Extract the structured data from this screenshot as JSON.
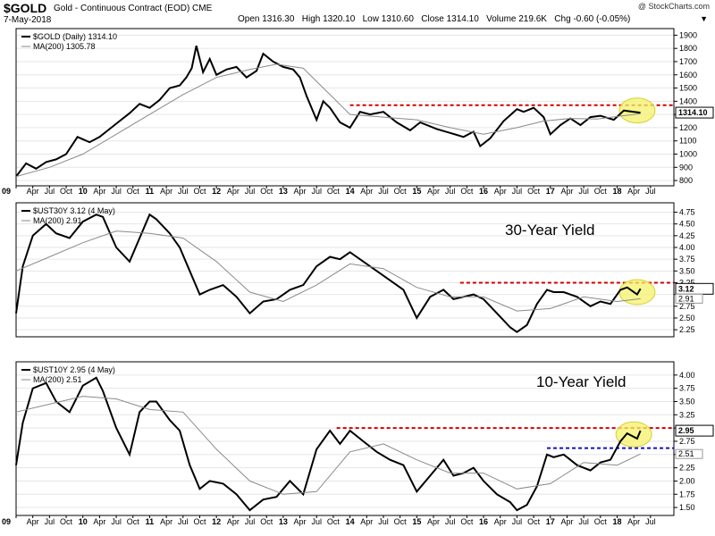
{
  "header": {
    "symbol": "$GOLD",
    "description": "Gold - Continuous Contract (EOD) CME",
    "date": "7-May-2018",
    "brand": "@ StockCharts.com",
    "open_label": "Open",
    "open": "1316.30",
    "high_label": "High",
    "high": "1320.10",
    "low_label": "Low",
    "low": "1310.60",
    "close_label": "Close",
    "close": "1314.10",
    "volume_label": "Volume",
    "volume": "219.6K",
    "chg_label": "Chg",
    "chg": "-0.60 (-0.05%)",
    "dropdown_icon": "triangle-down-icon"
  },
  "colors": {
    "price": "#000000",
    "ma": "#8a8a8a",
    "red_line": "#d40000",
    "blue_line": "#1010cc",
    "highlight": "#f4f26a"
  },
  "chart_data": [
    {
      "type": "line",
      "label": "$GOLD (Daily) 1314.10",
      "ma_label": "MA(200) 1305.78",
      "last_value_label": "1314.10",
      "x_tick_labels": [
        "09",
        "Apr",
        "Jul",
        "Oct",
        "10",
        "Apr",
        "Jul",
        "Oct",
        "11",
        "Apr",
        "Jul",
        "Oct",
        "12",
        "Apr",
        "Jul",
        "Oct",
        "13",
        "Apr",
        "Jul",
        "Oct",
        "14",
        "Apr",
        "Jul",
        "Oct",
        "15",
        "Apr",
        "Jul",
        "Oct",
        "16",
        "Apr",
        "Jul",
        "Oct",
        "17",
        "Apr",
        "Jul",
        "Oct",
        "18",
        "Apr",
        "Jul"
      ],
      "y_ticks": [
        800,
        900,
        1000,
        1100,
        1200,
        1300,
        1400,
        1500,
        1600,
        1700,
        1800,
        1900
      ],
      "ylim": [
        760,
        1950
      ],
      "xlim": [
        2009.0,
        2018.85
      ],
      "series": [
        {
          "x": [
            2009.0,
            2009.15,
            2009.3,
            2009.45,
            2009.6,
            2009.75,
            2009.92,
            2010.1,
            2010.25,
            2010.4,
            2010.55,
            2010.7,
            2010.85,
            2011.0,
            2011.15,
            2011.3,
            2011.45,
            2011.55,
            2011.63,
            2011.7,
            2011.8,
            2011.9,
            2012.0,
            2012.15,
            2012.3,
            2012.45,
            2012.6,
            2012.7,
            2012.85,
            2013.0,
            2013.15,
            2013.25,
            2013.35,
            2013.5,
            2013.6,
            2013.7,
            2013.85,
            2014.0,
            2014.15,
            2014.3,
            2014.5,
            2014.7,
            2014.9,
            2015.05,
            2015.3,
            2015.5,
            2015.7,
            2015.85,
            2015.95,
            2016.1,
            2016.3,
            2016.5,
            2016.6,
            2016.75,
            2016.9,
            2017.0,
            2017.15,
            2017.3,
            2017.45,
            2017.6,
            2017.75,
            2017.95,
            2018.1,
            2018.25,
            2018.35
          ],
          "values": [
            830,
            930,
            890,
            940,
            960,
            1000,
            1130,
            1090,
            1130,
            1190,
            1250,
            1310,
            1380,
            1350,
            1410,
            1500,
            1520,
            1580,
            1650,
            1820,
            1620,
            1720,
            1600,
            1640,
            1660,
            1580,
            1630,
            1760,
            1700,
            1660,
            1640,
            1580,
            1440,
            1260,
            1400,
            1350,
            1240,
            1200,
            1320,
            1300,
            1320,
            1240,
            1180,
            1240,
            1190,
            1160,
            1130,
            1170,
            1060,
            1120,
            1250,
            1340,
            1320,
            1350,
            1280,
            1150,
            1220,
            1270,
            1220,
            1280,
            1290,
            1260,
            1330,
            1320,
            1314
          ]
        },
        {
          "name": "MA(200)",
          "x": [
            2009.0,
            2009.5,
            2010.0,
            2010.5,
            2011.0,
            2011.5,
            2012.0,
            2012.5,
            2012.9,
            2013.3,
            2013.7,
            2014.0,
            2014.5,
            2015.0,
            2015.5,
            2016.0,
            2016.5,
            2016.9,
            2017.3,
            2017.7,
            2018.0,
            2018.35
          ],
          "values": [
            830,
            900,
            1000,
            1150,
            1300,
            1450,
            1580,
            1640,
            1680,
            1650,
            1450,
            1300,
            1280,
            1260,
            1200,
            1150,
            1200,
            1250,
            1270,
            1265,
            1285,
            1305.78
          ]
        }
      ],
      "annotations": [
        {
          "type": "hline",
          "value": 1370,
          "color": "red",
          "from_x": 2014.0,
          "to_x": 2018.85
        },
        {
          "type": "ellipse",
          "center_x": 2018.3,
          "center_value": 1330,
          "color": "yellow"
        }
      ]
    },
    {
      "type": "line",
      "label": "$UST30Y 3.12 (4 May)",
      "ma_label": "MA(200) 2.91",
      "title": "30-Year Yield",
      "last_value_label": "3.12",
      "ma_value_label": "2.91",
      "y_ticks": [
        2.25,
        2.5,
        2.75,
        3.0,
        3.25,
        3.5,
        3.75,
        4.0,
        4.25,
        4.5,
        4.75
      ],
      "ylim": [
        2.1,
        4.95
      ],
      "xlim": [
        2009.0,
        2018.85
      ],
      "series": [
        {
          "x": [
            2009.0,
            2009.1,
            2009.25,
            2009.45,
            2009.6,
            2009.8,
            2010.0,
            2010.2,
            2010.3,
            2010.5,
            2010.7,
            2010.85,
            2011.0,
            2011.1,
            2011.3,
            2011.45,
            2011.6,
            2011.75,
            2011.9,
            2012.1,
            2012.3,
            2012.5,
            2012.7,
            2012.9,
            2013.1,
            2013.3,
            2013.5,
            2013.7,
            2013.85,
            2014.0,
            2014.2,
            2014.4,
            2014.6,
            2014.8,
            2015.0,
            2015.2,
            2015.4,
            2015.55,
            2015.7,
            2015.85,
            2016.0,
            2016.2,
            2016.4,
            2016.5,
            2016.65,
            2016.8,
            2016.95,
            2017.05,
            2017.2,
            2017.4,
            2017.6,
            2017.75,
            2017.9,
            2018.05,
            2018.15,
            2018.3,
            2018.35
          ],
          "values": [
            2.6,
            3.6,
            4.25,
            4.5,
            4.3,
            4.2,
            4.55,
            4.7,
            4.65,
            4.0,
            3.7,
            4.2,
            4.7,
            4.6,
            4.3,
            4.0,
            3.5,
            3.0,
            3.1,
            3.2,
            2.95,
            2.6,
            2.85,
            2.9,
            3.1,
            3.2,
            3.6,
            3.8,
            3.75,
            3.9,
            3.7,
            3.5,
            3.3,
            3.1,
            2.5,
            2.95,
            3.1,
            2.9,
            2.95,
            3.0,
            2.9,
            2.6,
            2.3,
            2.2,
            2.35,
            2.8,
            3.1,
            3.05,
            3.05,
            2.95,
            2.75,
            2.85,
            2.8,
            3.1,
            3.15,
            3.0,
            3.12
          ]
        },
        {
          "name": "MA(200)",
          "x": [
            2009.0,
            2009.5,
            2010.0,
            2010.5,
            2011.0,
            2011.5,
            2012.0,
            2012.5,
            2013.0,
            2013.5,
            2014.0,
            2014.5,
            2015.0,
            2015.5,
            2016.0,
            2016.5,
            2017.0,
            2017.5,
            2018.0,
            2018.35
          ],
          "values": [
            3.5,
            3.8,
            4.1,
            4.35,
            4.3,
            4.2,
            3.7,
            3.05,
            2.85,
            3.2,
            3.65,
            3.55,
            3.15,
            2.95,
            2.95,
            2.65,
            2.7,
            2.95,
            2.85,
            2.91
          ]
        }
      ],
      "annotations": [
        {
          "type": "hline",
          "value": 3.25,
          "color": "red",
          "from_x": 2015.65,
          "to_x": 2018.85
        },
        {
          "type": "ellipse",
          "center_x": 2018.3,
          "center_value": 3.05,
          "color": "yellow"
        }
      ]
    },
    {
      "type": "line",
      "label": "$UST10Y 2.95 (4 May)",
      "ma_label": "MA(200) 2.51",
      "title": "10-Year Yield",
      "last_value_label": "2.95",
      "ma_value_label": "2.51",
      "x_tick_labels": [
        "09",
        "Apr",
        "Jul",
        "Oct",
        "10",
        "Apr",
        "Jul",
        "Oct",
        "11",
        "Apr",
        "Jul",
        "Oct",
        "12",
        "Apr",
        "Jul",
        "Oct",
        "13",
        "Apr",
        "Jul",
        "Oct",
        "14",
        "Apr",
        "Jul",
        "Oct",
        "15",
        "Apr",
        "Jul",
        "Oct",
        "16",
        "Apr",
        "Jul",
        "Oct",
        "17",
        "Apr",
        "Jul",
        "Oct",
        "18",
        "Apr",
        "Jul"
      ],
      "y_ticks": [
        1.5,
        1.75,
        2.0,
        2.25,
        2.5,
        2.75,
        3.0,
        3.25,
        3.5,
        3.75,
        4.0
      ],
      "ylim": [
        1.35,
        4.25
      ],
      "xlim": [
        2009.0,
        2018.85
      ],
      "series": [
        {
          "x": [
            2009.0,
            2009.1,
            2009.25,
            2009.45,
            2009.6,
            2009.8,
            2010.0,
            2010.2,
            2010.3,
            2010.5,
            2010.7,
            2010.85,
            2011.0,
            2011.1,
            2011.3,
            2011.45,
            2011.6,
            2011.75,
            2011.9,
            2012.1,
            2012.3,
            2012.5,
            2012.7,
            2012.9,
            2013.1,
            2013.3,
            2013.5,
            2013.7,
            2013.85,
            2014.0,
            2014.2,
            2014.4,
            2014.6,
            2014.8,
            2015.0,
            2015.2,
            2015.4,
            2015.55,
            2015.7,
            2015.85,
            2016.0,
            2016.2,
            2016.4,
            2016.5,
            2016.65,
            2016.8,
            2016.95,
            2017.05,
            2017.2,
            2017.4,
            2017.6,
            2017.75,
            2017.9,
            2018.05,
            2018.15,
            2018.3,
            2018.35
          ],
          "values": [
            2.3,
            3.1,
            3.75,
            3.85,
            3.5,
            3.3,
            3.8,
            3.95,
            3.7,
            3.0,
            2.5,
            3.3,
            3.5,
            3.5,
            3.15,
            2.95,
            2.3,
            1.85,
            2.0,
            1.95,
            1.75,
            1.45,
            1.65,
            1.7,
            2.0,
            1.75,
            2.6,
            2.95,
            2.7,
            2.95,
            2.75,
            2.55,
            2.4,
            2.3,
            1.8,
            2.1,
            2.4,
            2.1,
            2.15,
            2.25,
            2.0,
            1.75,
            1.6,
            1.45,
            1.55,
            1.9,
            2.5,
            2.45,
            2.5,
            2.3,
            2.2,
            2.35,
            2.4,
            2.75,
            2.9,
            2.8,
            2.95
          ]
        },
        {
          "name": "MA(200)",
          "x": [
            2009.0,
            2009.5,
            2010.0,
            2010.5,
            2011.0,
            2011.5,
            2012.0,
            2012.5,
            2013.0,
            2013.5,
            2014.0,
            2014.5,
            2015.0,
            2015.5,
            2016.0,
            2016.5,
            2017.0,
            2017.5,
            2018.0,
            2018.35
          ],
          "values": [
            3.3,
            3.45,
            3.6,
            3.55,
            3.35,
            3.3,
            2.6,
            2.0,
            1.75,
            1.8,
            2.55,
            2.7,
            2.4,
            2.15,
            2.15,
            1.85,
            1.95,
            2.35,
            2.3,
            2.51
          ]
        }
      ],
      "annotations": [
        {
          "type": "hline",
          "value": 3.0,
          "color": "red",
          "from_x": 2013.8,
          "to_x": 2018.85
        },
        {
          "type": "hline",
          "value": 2.62,
          "color": "blue",
          "from_x": 2016.95,
          "to_x": 2018.85
        },
        {
          "type": "ellipse",
          "center_x": 2018.25,
          "center_value": 2.88,
          "color": "yellow"
        }
      ]
    }
  ]
}
